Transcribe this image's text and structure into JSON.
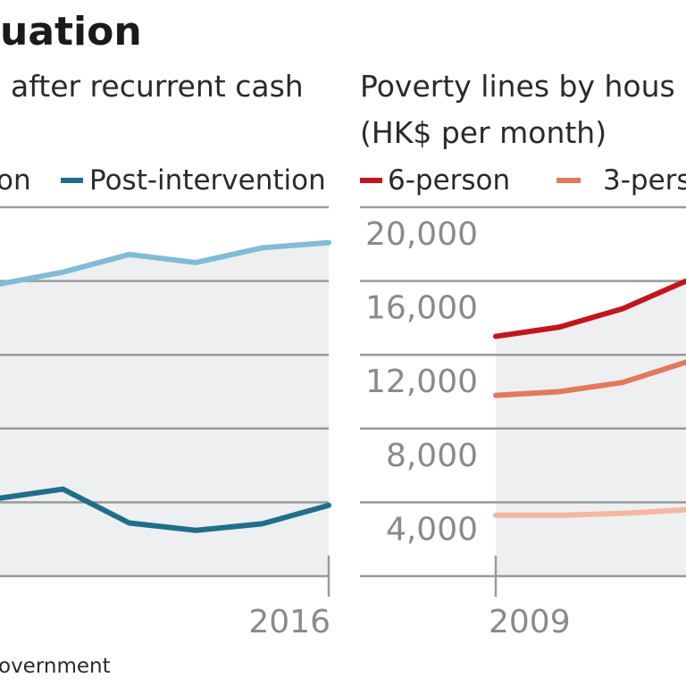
{
  "header": {
    "title_fragment": "uation",
    "left_subtitle_fragment": "after recurrent cash",
    "right_title_line1": "Poverty lines by hous",
    "right_title_line2": "(HK$ per month)"
  },
  "footer": {
    "source_fragment": "overnment"
  },
  "chart_data": [
    {
      "type": "line",
      "title": "",
      "x": [
        2011,
        2012,
        2013,
        2014,
        2015,
        2016
      ],
      "x_tick_labels": [
        "2016"
      ],
      "ylim": [
        0.9,
        1.4
      ],
      "y_gridlines": [
        1.0,
        1.1,
        1.2,
        1.3,
        1.4
      ],
      "grid": true,
      "legend_placement": "top",
      "legend_fragments": [
        "on",
        "Post-intervention"
      ],
      "series": [
        {
          "name": "",
          "color": "#80bcd8",
          "values": [
            1.295,
            1.312,
            1.336,
            1.325,
            1.345,
            1.352
          ]
        },
        {
          "name": "Post-intervention",
          "color": "#1f6f8b",
          "values": [
            1.005,
            1.018,
            0.972,
            0.962,
            0.971,
            0.996
          ]
        }
      ]
    },
    {
      "type": "line",
      "title": "Poverty lines by hous",
      "ylabel": "(HK$ per month)",
      "x": [
        2009,
        2010,
        2011,
        2012
      ],
      "x_tick_labels": [
        "2009"
      ],
      "y_tick_labels": [
        "20,000",
        "16,000",
        "12,000",
        "8,000",
        "4,000"
      ],
      "ylim": [
        0,
        20000
      ],
      "grid": true,
      "legend_placement": "top",
      "series": [
        {
          "name": "6-person",
          "color": "#c3161c",
          "values": [
            13000,
            13500,
            14500,
            16000
          ]
        },
        {
          "name": "3-pers",
          "color": "#e07a5c",
          "values": [
            9800,
            10000,
            10500,
            11600
          ]
        },
        {
          "name": "",
          "color": "#f2b8a2",
          "values": [
            3300,
            3300,
            3400,
            3600
          ]
        }
      ]
    }
  ]
}
